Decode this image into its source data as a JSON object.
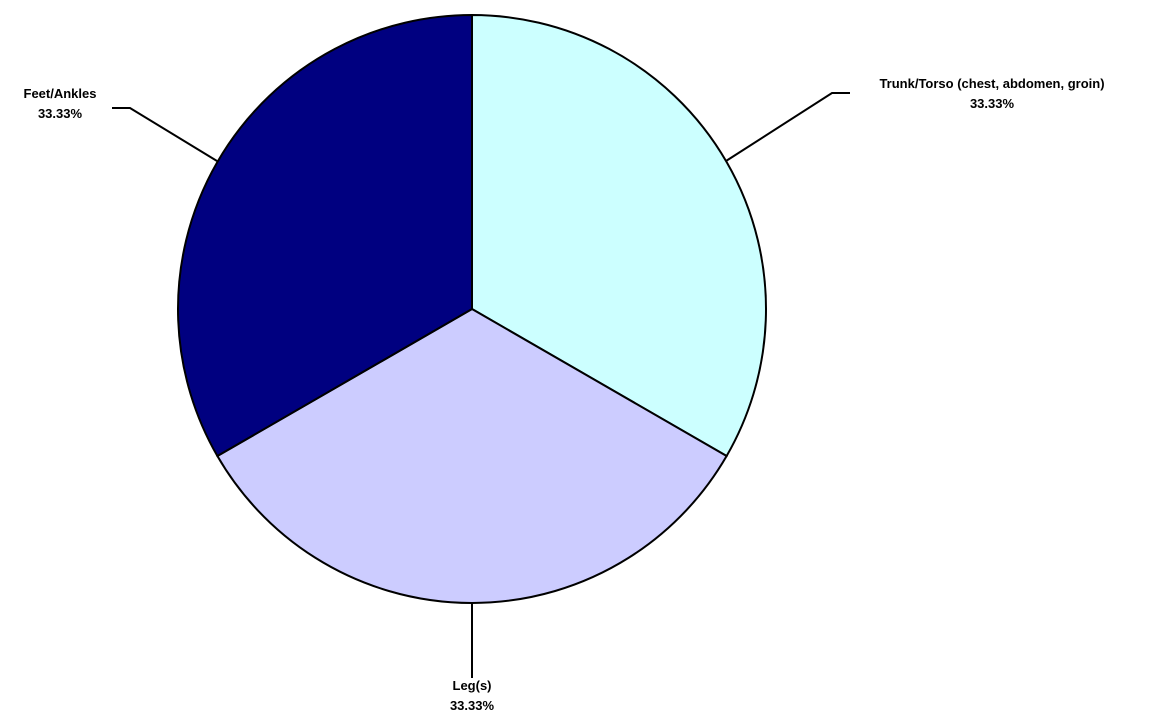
{
  "chart_data": {
    "type": "pie",
    "title": "",
    "start_angle_deg": 0,
    "direction": "clockwise",
    "slices": [
      {
        "label": "Trunk/Torso (chest, abdomen, groin)",
        "value": 33.33,
        "value_label": "33.33%",
        "color": "#ccffff"
      },
      {
        "label": "Leg(s)",
        "value": 33.33,
        "value_label": "33.33%",
        "color": "#ccccff"
      },
      {
        "label": "Feet/Ankles",
        "value": 33.33,
        "value_label": "33.33%",
        "color": "#000080"
      }
    ],
    "border_color": "#000000"
  }
}
